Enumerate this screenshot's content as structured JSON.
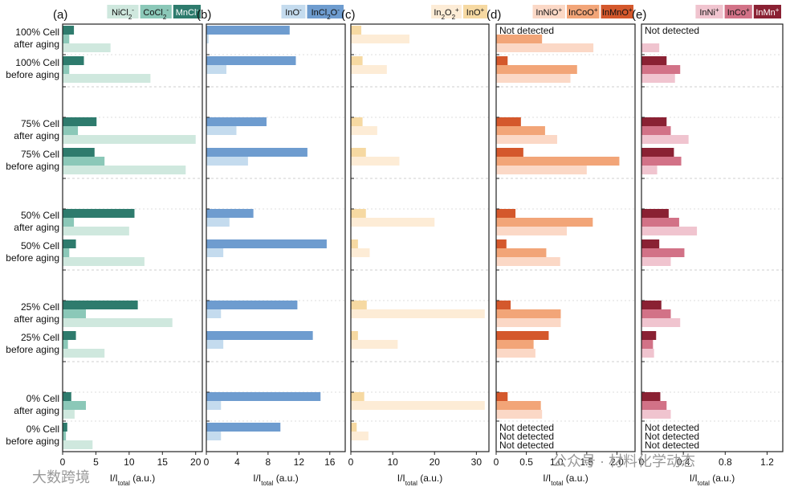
{
  "rows": [
    {
      "label1": "100% Cell",
      "label2": "after aging"
    },
    {
      "label1": "100% Cell",
      "label2": "before aging"
    },
    {
      "label1": "75% Cell",
      "label2": "after aging"
    },
    {
      "label1": "75% Cell",
      "label2": "before aging"
    },
    {
      "label1": "50% Cell",
      "label2": "after aging"
    },
    {
      "label1": "50% Cell",
      "label2": "before aging"
    },
    {
      "label1": "25% Cell",
      "label2": "after aging"
    },
    {
      "label1": "25% Cell",
      "label2": "before aging"
    },
    {
      "label1": "0% Cell",
      "label2": "after aging"
    },
    {
      "label1": "0% Cell",
      "label2": "before aging"
    }
  ],
  "watermark_left": "大数跨境",
  "watermark_right": "公众号 · 材料化学动态",
  "chart_data": [
    {
      "type": "bar",
      "orientation": "horizontal",
      "panel": "(a)",
      "xlabel": "I/I",
      "xlabel_sub": "total",
      "xlabel_unit": "(a.u.)",
      "xlim": [
        0,
        21
      ],
      "xticks": [
        0,
        5,
        10,
        15,
        20
      ],
      "series": [
        {
          "name": "MnCl",
          "sup": "-",
          "sub": "",
          "color": "#2e7b6d",
          "values": [
            1.7,
            3.2,
            5.1,
            4.8,
            10.8,
            2.0,
            11.3,
            2.0,
            1.3,
            0.7
          ]
        },
        {
          "name": "CoCl",
          "sup": "-",
          "sub": "2",
          "color": "#8bc8b8",
          "values": [
            1.0,
            1.0,
            2.3,
            6.3,
            1.7,
            1.0,
            3.5,
            0.8,
            3.5,
            0.5
          ]
        },
        {
          "name": "NiCl",
          "sup": "-",
          "sub": "2",
          "color": "#cfe8de",
          "values": [
            7.2,
            13.2,
            20.0,
            18.5,
            10.0,
            12.3,
            16.5,
            6.3,
            1.8,
            4.5
          ]
        }
      ],
      "annotations": []
    },
    {
      "type": "bar",
      "orientation": "horizontal",
      "panel": "(b)",
      "xlabel": "I/I",
      "xlabel_sub": "total",
      "xlabel_unit": "(a.u.)",
      "xlim": [
        0,
        18
      ],
      "xticks": [
        0,
        4,
        8,
        12,
        16
      ],
      "series": [
        {
          "name": "InCl",
          "sup": "-",
          "sub": "2",
          "suffix": "O",
          "color": "#6e9ccf",
          "values": [
            10.8,
            11.6,
            7.8,
            13.1,
            6.1,
            15.6,
            11.8,
            13.8,
            14.8,
            9.6
          ]
        },
        {
          "name": "InO",
          "sup": "-",
          "sub": "",
          "color": "#c4dbee",
          "values": [
            0.3,
            2.6,
            3.9,
            5.4,
            3.0,
            2.2,
            1.9,
            2.2,
            1.9,
            1.9
          ]
        }
      ],
      "annotations": []
    },
    {
      "type": "bar",
      "orientation": "horizontal",
      "panel": "(c)",
      "xlabel": "I/I",
      "xlabel_sub": "total",
      "xlabel_unit": "(a.u.)",
      "xlim": [
        0,
        33
      ],
      "xticks": [
        0,
        10,
        20,
        30
      ],
      "series": [
        {
          "name": "InO",
          "sup": "+",
          "sub": "",
          "color": "#f6d9a2",
          "values": [
            2.5,
            2.8,
            2.8,
            3.6,
            3.6,
            1.7,
            3.8,
            1.7,
            3.2,
            1.4
          ]
        },
        {
          "name": "In",
          "sup": "+",
          "sub": "2",
          "suffix": "O",
          "suffix_sub": "2",
          "color": "#fdecd6",
          "values": [
            14.0,
            8.6,
            6.3,
            11.6,
            20.0,
            4.5,
            32.0,
            11.2,
            32.0,
            4.2
          ]
        }
      ],
      "annotations": []
    },
    {
      "type": "bar",
      "orientation": "horizontal",
      "panel": "(d)",
      "xlabel": "I/I",
      "xlabel_sub": "total",
      "xlabel_unit": "(a.u.)",
      "xlim": [
        0,
        2.3
      ],
      "xticks": [
        0,
        0.5,
        1.0,
        1.5,
        2.0
      ],
      "xticklabels": [
        "0",
        "0.5",
        "1.0",
        "1.5",
        "2.0"
      ],
      "series": [
        {
          "name": "InMnO",
          "sup": "+",
          "sub": "",
          "color": "#d4582c",
          "values": [
            null,
            0.19,
            0.41,
            0.45,
            0.32,
            0.17,
            0.24,
            0.87,
            0.19,
            null
          ]
        },
        {
          "name": "InCoO",
          "sup": "+",
          "sub": "",
          "color": "#f2a578",
          "values": [
            0.76,
            1.34,
            0.81,
            2.04,
            1.6,
            0.83,
            1.07,
            0.62,
            0.74,
            null
          ]
        },
        {
          "name": "InNiO",
          "sup": "+",
          "sub": "",
          "color": "#fbd8c6",
          "values": [
            1.61,
            1.23,
            1.01,
            1.5,
            1.17,
            1.06,
            1.07,
            0.65,
            0.76,
            null
          ]
        }
      ],
      "annotations": [
        {
          "row": 0,
          "text": "Not detected"
        },
        {
          "row": 9,
          "text": "Not detected"
        },
        {
          "row": 9,
          "text": "Not detected"
        },
        {
          "row": 9,
          "text": "Not detected"
        }
      ]
    },
    {
      "type": "bar",
      "orientation": "horizontal",
      "panel": "(e)",
      "xlabel": "I/I",
      "xlabel_sub": "total",
      "xlabel_unit": "(a.u.)",
      "xlim": [
        0,
        1.35
      ],
      "xticks": [
        0,
        0.4,
        0.8,
        1.2
      ],
      "xticklabels": [
        "0",
        "0.4",
        "0.8",
        "1.2"
      ],
      "series": [
        {
          "name": "InMn",
          "sup": "+",
          "sub": "",
          "color": "#8a2133",
          "values": [
            null,
            0.24,
            0.24,
            0.31,
            0.26,
            0.17,
            0.19,
            0.14,
            0.18,
            null
          ]
        },
        {
          "name": "InCo",
          "sup": "+",
          "sub": "",
          "color": "#d27287",
          "values": [
            null,
            0.37,
            0.28,
            0.38,
            0.36,
            0.41,
            0.28,
            0.11,
            0.24,
            null
          ]
        },
        {
          "name": "InNi",
          "sup": "+",
          "sub": "",
          "color": "#f0c4cf",
          "values": [
            0.17,
            0.32,
            0.45,
            0.15,
            0.53,
            0.28,
            0.37,
            0.12,
            0.28,
            null
          ]
        }
      ],
      "annotations": [
        {
          "row": 0,
          "text": "Not detected"
        },
        {
          "row": 9,
          "text": "Not detected"
        },
        {
          "row": 9,
          "text": "Not detected"
        },
        {
          "row": 9,
          "text": "Not detected"
        }
      ]
    }
  ]
}
